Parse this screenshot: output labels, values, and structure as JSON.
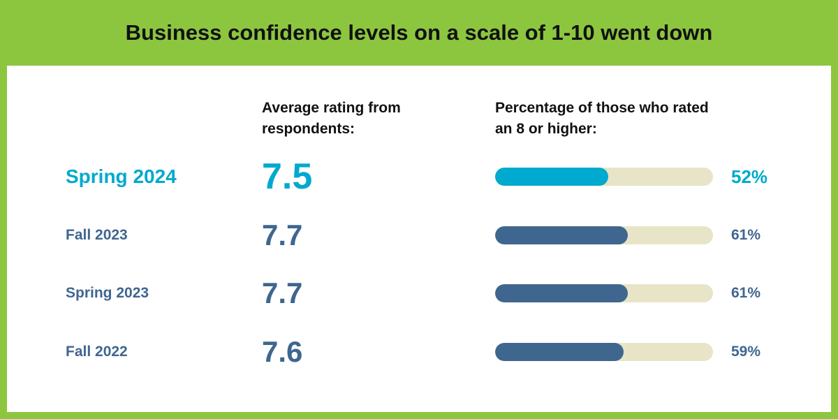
{
  "title": "Business confidence levels on a scale of 1-10 went down",
  "columns": {
    "average": "Average rating from respondents:",
    "percentage": "Percentage of those who rated an 8 or higher:"
  },
  "colors": {
    "background": "#8cc63f",
    "highlight": "#00a9ce",
    "normal": "#3f668f",
    "track": "#e8e4c7"
  },
  "chart_data": {
    "type": "table",
    "title": "Business confidence levels on a scale of 1-10 went down",
    "columns": [
      "Average rating from respondents:",
      "Percentage of those who rated an 8 or higher:"
    ],
    "rows": [
      {
        "season": "Spring 2024",
        "average_rating": 7.5,
        "rating_label": "7.5",
        "pct_8_or_higher": 52,
        "pct_label": "52%",
        "highlight": true
      },
      {
        "season": "Fall 2023",
        "average_rating": 7.7,
        "rating_label": "7.7",
        "pct_8_or_higher": 61,
        "pct_label": "61%",
        "highlight": false
      },
      {
        "season": "Spring 2023",
        "average_rating": 7.7,
        "rating_label": "7.7",
        "pct_8_or_higher": 61,
        "pct_label": "61%",
        "highlight": false
      },
      {
        "season": "Fall 2022",
        "average_rating": 7.6,
        "rating_label": "7.6",
        "pct_8_or_higher": 59,
        "pct_label": "59%",
        "highlight": false
      }
    ],
    "bar_range": [
      0,
      100
    ]
  }
}
